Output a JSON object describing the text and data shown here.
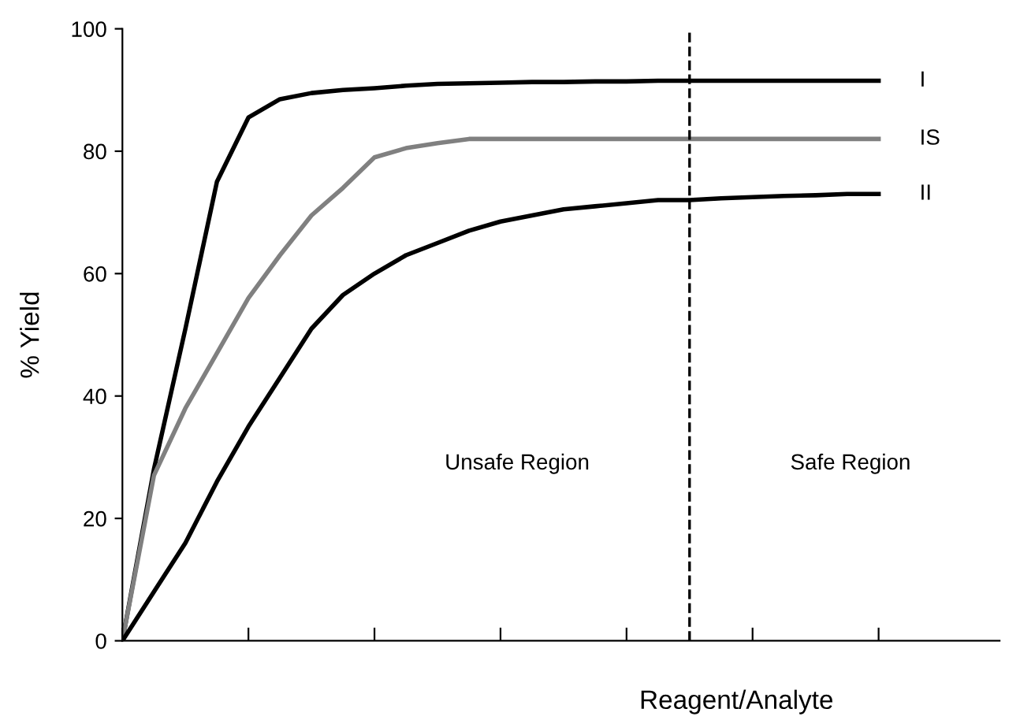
{
  "chart_data": {
    "type": "line",
    "xlabel": "Reagent/Analyte",
    "ylabel": "% Yield",
    "categories": [
      null,
      null,
      null,
      null,
      null,
      null,
      null,
      null,
      null,
      null,
      null,
      null,
      null,
      null,
      null,
      null,
      null,
      null,
      null,
      null,
      null,
      null,
      null,
      null,
      null
    ],
    "series": [
      {
        "name": "I",
        "color": "#000000",
        "values": [
          0,
          28,
          51,
          75,
          85.5,
          88.5,
          89.5,
          90,
          90.3,
          90.7,
          91,
          91.1,
          91.2,
          91.3,
          91.3,
          91.4,
          91.4,
          91.5,
          91.5,
          91.5,
          91.5,
          91.5,
          91.5,
          91.5,
          91.5
        ]
      },
      {
        "name": "IS",
        "color": "#808080",
        "values": [
          0,
          27,
          38,
          47,
          56,
          63,
          69.5,
          74,
          79,
          80.5,
          81.3,
          82,
          82,
          82,
          82,
          82,
          82,
          82,
          82,
          82,
          82,
          82,
          82,
          82,
          82
        ]
      },
      {
        "name": "II",
        "color": "#000000",
        "values": [
          0,
          8,
          16,
          26,
          35,
          43,
          51,
          56.5,
          60,
          63,
          65,
          67,
          68.5,
          69.5,
          70.5,
          71,
          71.5,
          72,
          72,
          72.3,
          72.5,
          72.7,
          72.8,
          73,
          73
        ]
      }
    ],
    "ylim": [
      0,
      100
    ],
    "yticks": [
      0,
      20,
      40,
      60,
      80,
      100
    ],
    "annotations": [
      "Unsafe Region",
      "Safe Region"
    ],
    "tick_labels": "y",
    "grid": false,
    "legend": false,
    "marker": "none",
    "line_style": "solid"
  }
}
